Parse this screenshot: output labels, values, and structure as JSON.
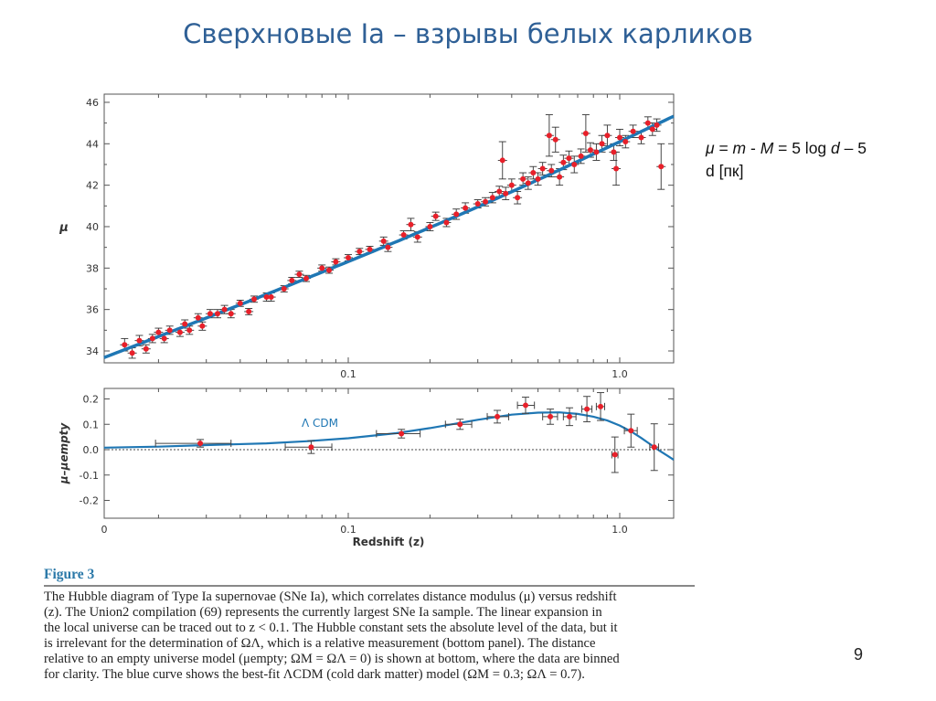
{
  "slide": {
    "title": "Сверхновые Ia – взрывы белых карликов",
    "formula_line1": {
      "mu": "μ",
      "eq1": " = ",
      "m": "m",
      "minus": " - ",
      "M": "M",
      "eq2": " = 5 log ",
      "d": "d",
      "rest": " – 5"
    },
    "formula_line2": "d [пк]",
    "page_number": "9"
  },
  "caption": {
    "figure_label": "Figure 3",
    "lines": [
      "The Hubble diagram of Type Ia supernovae (SNe Ia), which correlates distance modulus (μ) versus redshift",
      "(z). The Union2 compilation (69) represents the currently largest SNe Ia sample. The linear expansion in",
      "the local universe can be traced out to z < 0.1. The Hubble constant sets the absolute level of the data, but it",
      "is irrelevant for the determination of ΩΛ, which is a relative measurement (bottom panel). The distance",
      "relative to an empty universe model (μempty; ΩM = ΩΛ = 0) is shown at bottom, where the data are binned",
      "for clarity. The blue curve shows the best-fit ΛCDM (cold dark matter) model (ΩM = 0.3; ΩΛ = 0.7)."
    ]
  },
  "chart_data": [
    {
      "type": "scatter",
      "title": "",
      "xlabel": "",
      "ylabel": "μ",
      "xscale": "log",
      "xlim": [
        0.0126,
        1.58
      ],
      "ylim": [
        33.3,
        46.3
      ],
      "xticks": [
        {
          "v": 0.1,
          "label": "0.1"
        },
        {
          "v": 1.0,
          "label": "1.0"
        }
      ],
      "yticks": [
        {
          "v": 34,
          "label": "34"
        },
        {
          "v": 36,
          "label": "36"
        },
        {
          "v": 38,
          "label": "38"
        },
        {
          "v": 40,
          "label": "40"
        },
        {
          "v": 42,
          "label": "42"
        },
        {
          "v": 44,
          "label": "44"
        },
        {
          "v": 46,
          "label": "46"
        }
      ],
      "colors": {
        "points": "#e8202a",
        "errors": "#333333",
        "fit": "#1f77b4"
      },
      "fit": {
        "name": "ΛCDM",
        "omega_m": 0.3,
        "omega_lambda": 0.7
      },
      "points": [
        [
          0.015,
          34.3,
          0.3
        ],
        [
          0.016,
          33.9,
          0.25
        ],
        [
          0.017,
          34.5,
          0.25
        ],
        [
          0.018,
          34.1,
          0.2
        ],
        [
          0.019,
          34.6,
          0.2
        ],
        [
          0.02,
          34.9,
          0.2
        ],
        [
          0.021,
          34.6,
          0.2
        ],
        [
          0.022,
          35.0,
          0.2
        ],
        [
          0.024,
          34.9,
          0.2
        ],
        [
          0.025,
          35.3,
          0.2
        ],
        [
          0.026,
          35.0,
          0.2
        ],
        [
          0.028,
          35.6,
          0.2
        ],
        [
          0.029,
          35.2,
          0.2
        ],
        [
          0.031,
          35.8,
          0.2
        ],
        [
          0.033,
          35.8,
          0.2
        ],
        [
          0.035,
          36.0,
          0.2
        ],
        [
          0.037,
          35.8,
          0.2
        ],
        [
          0.04,
          36.3,
          0.15
        ],
        [
          0.043,
          35.9,
          0.15
        ],
        [
          0.045,
          36.5,
          0.15
        ],
        [
          0.05,
          36.6,
          0.2
        ],
        [
          0.052,
          36.6,
          0.2
        ],
        [
          0.058,
          37.0,
          0.15
        ],
        [
          0.062,
          37.4,
          0.15
        ],
        [
          0.066,
          37.7,
          0.15
        ],
        [
          0.07,
          37.5,
          0.15
        ],
        [
          0.08,
          38.0,
          0.15
        ],
        [
          0.085,
          37.9,
          0.15
        ],
        [
          0.09,
          38.3,
          0.15
        ],
        [
          0.1,
          38.5,
          0.15
        ],
        [
          0.11,
          38.8,
          0.15
        ],
        [
          0.12,
          38.9,
          0.15
        ],
        [
          0.135,
          39.3,
          0.2
        ],
        [
          0.14,
          39.0,
          0.2
        ],
        [
          0.16,
          39.6,
          0.2
        ],
        [
          0.17,
          40.1,
          0.3
        ],
        [
          0.18,
          39.5,
          0.25
        ],
        [
          0.2,
          40.0,
          0.2
        ],
        [
          0.21,
          40.5,
          0.2
        ],
        [
          0.23,
          40.2,
          0.2
        ],
        [
          0.25,
          40.6,
          0.25
        ],
        [
          0.27,
          40.9,
          0.25
        ],
        [
          0.3,
          41.1,
          0.2
        ],
        [
          0.32,
          41.2,
          0.2
        ],
        [
          0.34,
          41.4,
          0.25
        ],
        [
          0.36,
          41.7,
          0.25
        ],
        [
          0.37,
          43.2,
          0.9
        ],
        [
          0.38,
          41.6,
          0.3
        ],
        [
          0.4,
          42.0,
          0.3
        ],
        [
          0.42,
          41.4,
          0.3
        ],
        [
          0.44,
          42.3,
          0.3
        ],
        [
          0.46,
          42.1,
          0.3
        ],
        [
          0.48,
          42.6,
          0.3
        ],
        [
          0.5,
          42.3,
          0.3
        ],
        [
          0.52,
          42.8,
          0.3
        ],
        [
          0.55,
          44.4,
          1.0
        ],
        [
          0.56,
          42.7,
          0.3
        ],
        [
          0.58,
          44.2,
          0.6
        ],
        [
          0.6,
          42.4,
          0.4
        ],
        [
          0.62,
          43.1,
          0.35
        ],
        [
          0.65,
          43.3,
          0.35
        ],
        [
          0.68,
          43.0,
          0.4
        ],
        [
          0.72,
          43.4,
          0.35
        ],
        [
          0.75,
          44.5,
          0.9
        ],
        [
          0.78,
          43.7,
          0.35
        ],
        [
          0.82,
          43.6,
          0.4
        ],
        [
          0.86,
          44.0,
          0.4
        ],
        [
          0.9,
          44.4,
          0.5
        ],
        [
          0.95,
          43.6,
          0.4
        ],
        [
          0.97,
          42.8,
          0.8
        ],
        [
          1.0,
          44.3,
          0.4
        ],
        [
          1.05,
          44.1,
          0.3
        ],
        [
          1.12,
          44.6,
          0.3
        ],
        [
          1.2,
          44.3,
          0.3
        ],
        [
          1.27,
          45.0,
          0.3
        ],
        [
          1.32,
          44.7,
          0.3
        ],
        [
          1.37,
          44.9,
          0.3
        ],
        [
          1.42,
          42.9,
          1.1
        ]
      ]
    },
    {
      "type": "scatter",
      "title": "",
      "xlabel": "Redshift (z)",
      "ylabel": "μ–μempty",
      "xscale": "log",
      "xlim": [
        0.0126,
        1.58
      ],
      "ylim": [
        -0.25,
        0.25
      ],
      "xticks": [
        {
          "v": 0.0126,
          "label": "0"
        },
        {
          "v": 0.1,
          "label": "0.1"
        },
        {
          "v": 1.0,
          "label": "1.0"
        }
      ],
      "yticks": [
        {
          "v": 0.2,
          "label": "0.2"
        },
        {
          "v": 0.1,
          "label": "0.1"
        },
        {
          "v": 0.0,
          "label": "0.0"
        },
        {
          "v": -0.1,
          "label": "-0.1"
        },
        {
          "v": -0.2,
          "label": "-0.2"
        }
      ],
      "annotation": "Λ CDM",
      "reference_line": 0.0,
      "points": [
        {
          "z": 0.0285,
          "dmu": 0.025,
          "err": 0.015,
          "zlo": 0.0195,
          "zhi": 0.037
        },
        {
          "z": 0.073,
          "dmu": 0.01,
          "err": 0.025,
          "zlo": 0.0586,
          "zhi": 0.087
        },
        {
          "z": 0.157,
          "dmu": 0.063,
          "err": 0.017,
          "zlo": 0.127,
          "zhi": 0.184
        },
        {
          "z": 0.258,
          "dmu": 0.1,
          "err": 0.02,
          "zlo": 0.228,
          "zhi": 0.285
        },
        {
          "z": 0.354,
          "dmu": 0.13,
          "err": 0.025,
          "zlo": 0.325,
          "zhi": 0.39
        },
        {
          "z": 0.45,
          "dmu": 0.175,
          "err": 0.032,
          "zlo": 0.42,
          "zhi": 0.485
        },
        {
          "z": 0.555,
          "dmu": 0.13,
          "err": 0.03,
          "zlo": 0.52,
          "zhi": 0.59
        },
        {
          "z": 0.653,
          "dmu": 0.13,
          "err": 0.035,
          "zlo": 0.62,
          "zhi": 0.69
        },
        {
          "z": 0.757,
          "dmu": 0.16,
          "err": 0.05,
          "zlo": 0.725,
          "zhi": 0.79
        },
        {
          "z": 0.85,
          "dmu": 0.17,
          "err": 0.055,
          "zlo": 0.82,
          "zhi": 0.88
        },
        {
          "z": 0.96,
          "dmu": -0.02,
          "err": 0.07,
          "zlo": 0.935,
          "zhi": 0.985
        },
        {
          "z": 1.1,
          "dmu": 0.075,
          "err": 0.065,
          "zlo": 1.04,
          "zhi": 1.16
        },
        {
          "z": 1.34,
          "dmu": 0.01,
          "err": 0.092,
          "zlo": 1.29,
          "zhi": 1.39
        }
      ],
      "curve": [
        [
          0.0126,
          0.008
        ],
        [
          0.02,
          0.012
        ],
        [
          0.03,
          0.018
        ],
        [
          0.05,
          0.025
        ],
        [
          0.07,
          0.033
        ],
        [
          0.1,
          0.045
        ],
        [
          0.15,
          0.065
        ],
        [
          0.2,
          0.085
        ],
        [
          0.3,
          0.118
        ],
        [
          0.4,
          0.138
        ],
        [
          0.5,
          0.146
        ],
        [
          0.6,
          0.147
        ],
        [
          0.7,
          0.141
        ],
        [
          0.8,
          0.13
        ],
        [
          0.9,
          0.115
        ],
        [
          1.0,
          0.095
        ],
        [
          1.1,
          0.072
        ],
        [
          1.2,
          0.046
        ],
        [
          1.3,
          0.02
        ],
        [
          1.4,
          -0.004
        ],
        [
          1.5,
          -0.024
        ],
        [
          1.58,
          -0.04
        ]
      ]
    }
  ]
}
